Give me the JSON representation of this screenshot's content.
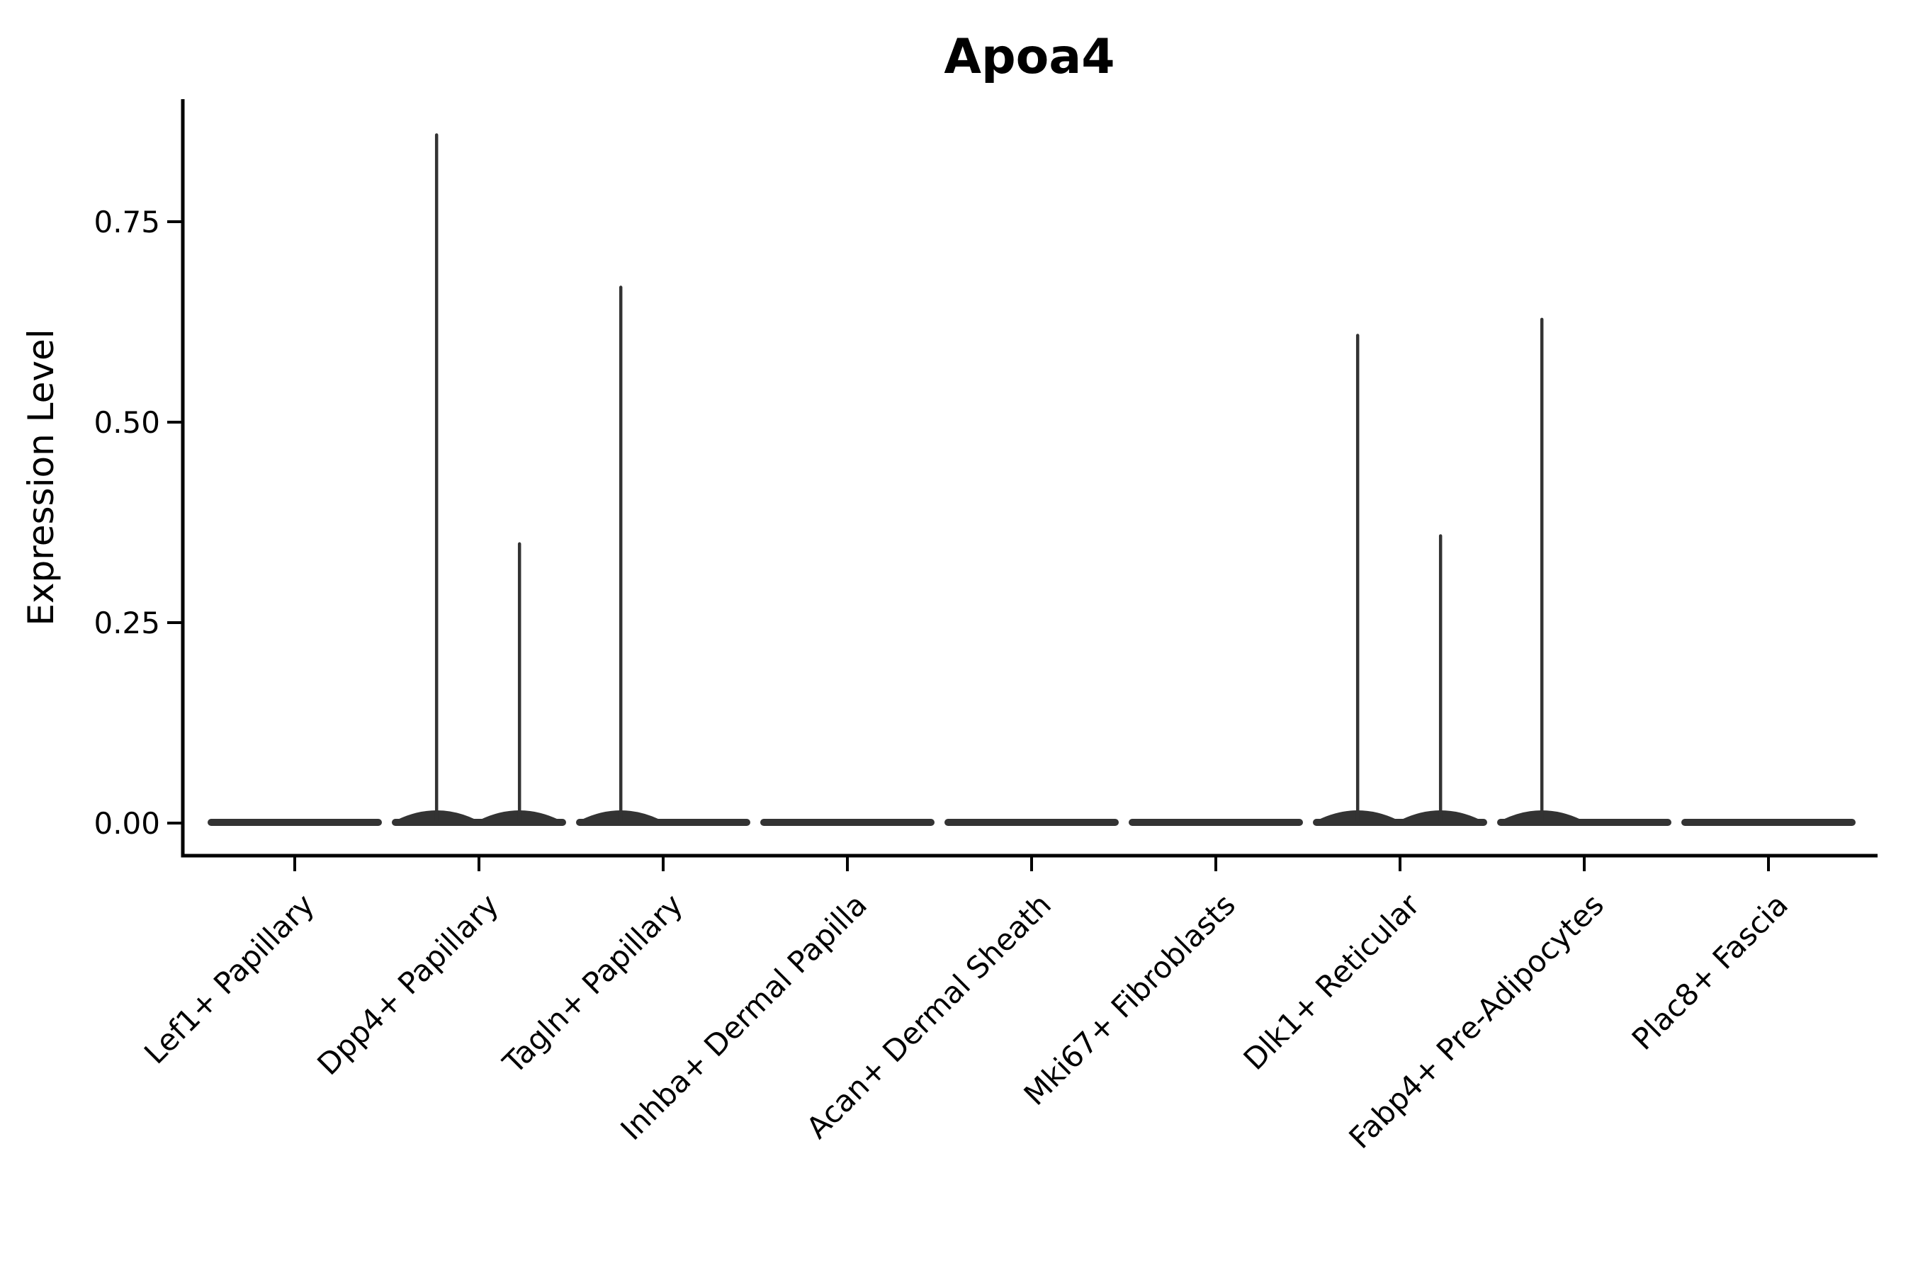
{
  "chart_data": {
    "type": "violin",
    "title": "Apoa4",
    "ylabel": "Expression Level",
    "xlabel": "",
    "ylim": [
      0,
      0.9
    ],
    "grid": false,
    "legend": null,
    "yticks": [
      {
        "label": "0.00",
        "value": 0.0
      },
      {
        "label": "0.25",
        "value": 0.25
      },
      {
        "label": "0.50",
        "value": 0.5
      },
      {
        "label": "0.75",
        "value": 0.75
      }
    ],
    "categories": [
      "Lef1+ Papillary",
      "Dpp4+ Papillary",
      "Tagln+ Papillary",
      "Inhba+ Dermal Papilla",
      "Acan+ Dermal Sheath",
      "Mki67+ Fibroblasts",
      "Dlk1+ Reticular",
      "Fabp4+ Pre-Adipocytes",
      "Plac8+ Fascia"
    ],
    "violins": [
      {
        "category": "Lef1+ Papillary",
        "baseline_value": 0,
        "max_expression": 0.0,
        "spikes": []
      },
      {
        "category": "Dpp4+ Papillary",
        "baseline_value": 0,
        "max_expression": 0.86,
        "spikes": [
          {
            "value": 0.86,
            "offset": -0.23
          },
          {
            "value": 0.35,
            "offset": 0.22
          }
        ]
      },
      {
        "category": "Tagln+ Papillary",
        "baseline_value": 0,
        "max_expression": 0.67,
        "spikes": [
          {
            "value": 0.67,
            "offset": -0.23
          }
        ]
      },
      {
        "category": "Inhba+ Dermal Papilla",
        "baseline_value": 0,
        "max_expression": 0.0,
        "spikes": []
      },
      {
        "category": "Acan+ Dermal Sheath",
        "baseline_value": 0,
        "max_expression": 0.0,
        "spikes": []
      },
      {
        "category": "Mki67+ Fibroblasts",
        "baseline_value": 0,
        "max_expression": 0.0,
        "spikes": []
      },
      {
        "category": "Dlk1+ Reticular",
        "baseline_value": 0,
        "max_expression": 0.61,
        "spikes": [
          {
            "value": 0.61,
            "offset": -0.23
          },
          {
            "value": 0.36,
            "offset": 0.22
          }
        ]
      },
      {
        "category": "Fabp4+ Pre-Adipocytes",
        "baseline_value": 0,
        "max_expression": 0.63,
        "spikes": [
          {
            "value": 0.63,
            "offset": -0.23
          }
        ]
      },
      {
        "category": "Plac8+ Fascia",
        "baseline_value": 0,
        "max_expression": 0.0,
        "spikes": []
      }
    ],
    "colors": {
      "violin": "#333333",
      "axis": "#000000",
      "text": "#000000",
      "background": "#ffffff"
    }
  }
}
